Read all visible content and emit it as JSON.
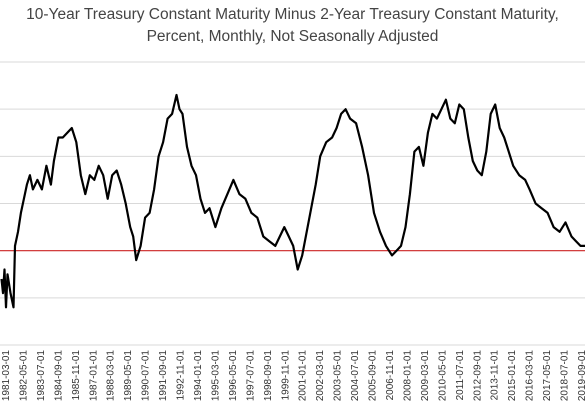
{
  "chart_data": {
    "type": "line",
    "title_lines": [
      "10-Year Treasury Constant Maturity Minus 2-Year Treasury Constant Maturity,",
      "Percent, Monthly, Not Seasonally Adjusted"
    ],
    "xlabel": "",
    "ylabel": "",
    "x_tick_labels": [
      "1981-03-01",
      "1982-05-01",
      "1983-07-01",
      "1984-09-01",
      "1985-11-01",
      "1987-01-01",
      "1988-03-01",
      "1989-05-01",
      "1990-07-01",
      "1991-09-01",
      "1992-11-01",
      "1994-01-01",
      "1995-03-01",
      "1996-05-01",
      "1997-07-01",
      "1998-09-01",
      "1999-11-01",
      "2001-01-01",
      "2002-03-01",
      "2003-05-01",
      "2004-07-01",
      "2005-09-01",
      "2006-11-01",
      "2008-01-01",
      "2009-03-01",
      "2010-05-01",
      "2011-07-01",
      "2012-09-01",
      "2013-11-01",
      "2015-01-01",
      "2016-03-01",
      "2017-05-01",
      "2018-07-01",
      "2019-09-01"
    ],
    "x_range": [
      1980.8,
      2019.9
    ],
    "y_range": [
      -2.0,
      4.0
    ],
    "zero_line_color": "#cc2222",
    "series_color": "#000000",
    "grid": "horizontal",
    "series": [
      {
        "x": [
          1980.9,
          1981.0,
          1981.1,
          1981.2,
          1981.3,
          1981.5,
          1981.7,
          1981.8,
          1982.0,
          1982.2,
          1982.4,
          1982.6,
          1982.8,
          1983.0,
          1983.3,
          1983.6,
          1983.9,
          1984.2,
          1984.4,
          1984.7,
          1985.0,
          1985.3,
          1985.6,
          1985.9,
          1986.2,
          1986.5,
          1986.8,
          1987.1,
          1987.4,
          1987.7,
          1988.0,
          1988.3,
          1988.6,
          1988.9,
          1989.2,
          1989.5,
          1989.7,
          1989.9,
          1990.2,
          1990.5,
          1990.8,
          1991.1,
          1991.4,
          1991.7,
          1992.0,
          1992.3,
          1992.6,
          1992.8,
          1993.0,
          1993.3,
          1993.6,
          1993.9,
          1994.2,
          1994.5,
          1994.8,
          1995.2,
          1995.6,
          1996.0,
          1996.4,
          1996.8,
          1997.2,
          1997.6,
          1998.0,
          1998.4,
          1998.8,
          1999.2,
          1999.5,
          1999.8,
          2000.1,
          2000.4,
          2000.7,
          2001.0,
          2001.3,
          2001.6,
          2001.9,
          2002.2,
          2002.6,
          2003.0,
          2003.3,
          2003.6,
          2003.9,
          2004.2,
          2004.6,
          2005.0,
          2005.4,
          2005.8,
          2006.2,
          2006.6,
          2007.0,
          2007.3,
          2007.6,
          2007.9,
          2008.2,
          2008.5,
          2008.8,
          2009.1,
          2009.4,
          2009.7,
          2010.0,
          2010.3,
          2010.6,
          2010.9,
          2011.2,
          2011.5,
          2011.8,
          2012.1,
          2012.4,
          2012.7,
          2013.0,
          2013.3,
          2013.6,
          2013.9,
          2014.2,
          2014.5,
          2014.8,
          2015.1,
          2015.5,
          2015.9,
          2016.2,
          2016.6,
          2017.0,
          2017.4,
          2017.8,
          2018.2,
          2018.6,
          2019.0,
          2019.3,
          2019.6,
          2019.9
        ],
        "y": [
          -0.6,
          -0.9,
          -0.4,
          -1.2,
          -0.5,
          -0.9,
          -1.2,
          0.1,
          0.4,
          0.8,
          1.1,
          1.4,
          1.6,
          1.3,
          1.5,
          1.3,
          1.8,
          1.4,
          1.9,
          2.4,
          2.4,
          2.5,
          2.6,
          2.3,
          1.6,
          1.2,
          1.6,
          1.5,
          1.8,
          1.6,
          1.1,
          1.6,
          1.7,
          1.4,
          1.0,
          0.5,
          0.3,
          -0.2,
          0.1,
          0.7,
          0.8,
          1.3,
          2.0,
          2.3,
          2.8,
          2.9,
          3.3,
          3.0,
          2.9,
          2.2,
          1.8,
          1.6,
          1.1,
          0.8,
          0.9,
          0.5,
          0.9,
          1.2,
          1.5,
          1.2,
          1.1,
          0.8,
          0.7,
          0.3,
          0.2,
          0.1,
          0.3,
          0.5,
          0.3,
          0.1,
          -0.4,
          -0.1,
          0.4,
          0.9,
          1.4,
          2.0,
          2.3,
          2.4,
          2.6,
          2.9,
          3.0,
          2.8,
          2.7,
          2.2,
          1.6,
          0.8,
          0.4,
          0.1,
          -0.1,
          0.0,
          0.1,
          0.5,
          1.2,
          2.1,
          2.2,
          1.8,
          2.5,
          2.9,
          2.8,
          3.0,
          3.2,
          2.8,
          2.7,
          3.1,
          3.0,
          2.4,
          1.9,
          1.7,
          1.6,
          2.1,
          2.9,
          3.1,
          2.6,
          2.4,
          2.1,
          1.8,
          1.6,
          1.5,
          1.3,
          1.0,
          0.9,
          0.8,
          0.5,
          0.4,
          0.6,
          0.3,
          0.2,
          0.1,
          0.1
        ]
      }
    ]
  }
}
